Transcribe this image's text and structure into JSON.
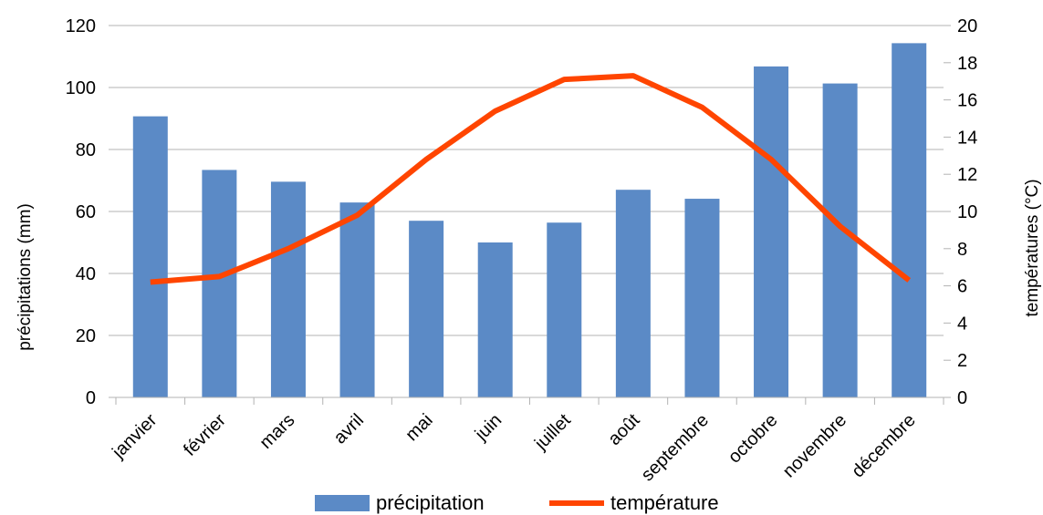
{
  "chart_data": {
    "type": "bar+line",
    "categories": [
      "janvier",
      "février",
      "mars",
      "avril",
      "mai",
      "juin",
      "juillet",
      "août",
      "septembre",
      "octobre",
      "novembre",
      "décembre"
    ],
    "series": [
      {
        "name": "précipitation",
        "type": "bar",
        "axis": "left",
        "color": "#5b8ac6",
        "values": [
          90.7,
          73.4,
          69.6,
          62.9,
          57.0,
          50.0,
          56.4,
          67.0,
          64.1,
          106.8,
          101.3,
          114.3
        ]
      },
      {
        "name": "température",
        "type": "line",
        "axis": "right",
        "color": "#ff4500",
        "values": [
          6.2,
          6.5,
          8.0,
          9.8,
          12.8,
          15.4,
          17.1,
          17.3,
          15.6,
          12.8,
          9.2,
          6.3
        ]
      }
    ],
    "ylabel_left": "précipitations (mm)",
    "ylabel_right": "températures (°C)",
    "ylim_left": [
      0,
      120
    ],
    "yticks_left": [
      0,
      20,
      40,
      60,
      80,
      100,
      120
    ],
    "ylim_right": [
      0,
      20
    ],
    "yticks_right": [
      0,
      2,
      4,
      6,
      8,
      10,
      12,
      14,
      16,
      18,
      20
    ],
    "grid": true,
    "legend": "bottom"
  }
}
